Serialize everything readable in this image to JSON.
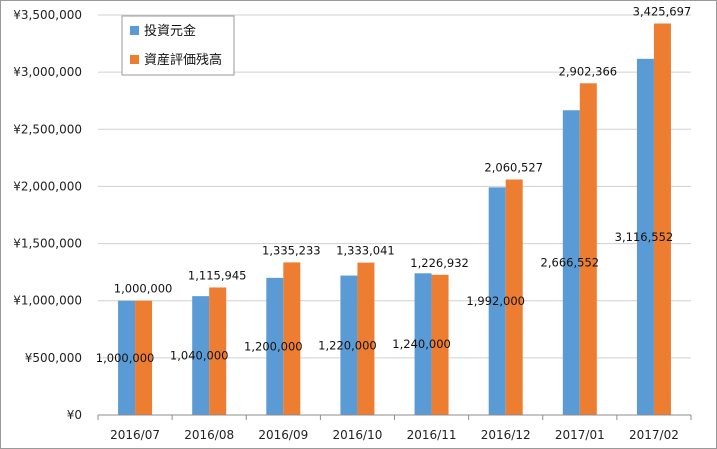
{
  "chart_data": {
    "type": "bar",
    "title": "",
    "xlabel": "",
    "ylabel": "",
    "ylim": [
      0,
      3500000
    ],
    "ytick_step": 500000,
    "ytick_labels": [
      "¥0",
      "¥500,000",
      "¥1,000,000",
      "¥1,500,000",
      "¥2,000,000",
      "¥2,500,000",
      "¥3,000,000",
      "¥3,500,000"
    ],
    "grid": true,
    "legend": "top-left",
    "categories": [
      "2016/07",
      "2016/08",
      "2016/09",
      "2016/10",
      "2016/11",
      "2016/12",
      "2017/01",
      "2017/02"
    ],
    "series": [
      {
        "name": "投資元金",
        "color": "#5b9bd5",
        "values": [
          1000000,
          1040000,
          1200000,
          1220000,
          1240000,
          1992000,
          2666552,
          3116552
        ],
        "labels": [
          "1,000,000",
          "1,040,000",
          "1,200,000",
          "1,220,000",
          "1,240,000",
          "1,992,000",
          "2,666,552",
          "3,116,552"
        ]
      },
      {
        "name": "資産評価残高",
        "color": "#ed7d31",
        "values": [
          1000000,
          1115945,
          1335233,
          1333041,
          1226932,
          2060527,
          2902366,
          3425697
        ],
        "labels": [
          "1,000,000",
          "1,115,945",
          "1,335,233",
          "1,333,041",
          "1,226,932",
          "2,060,527",
          "2,902,366",
          "3,425,697"
        ]
      }
    ]
  }
}
